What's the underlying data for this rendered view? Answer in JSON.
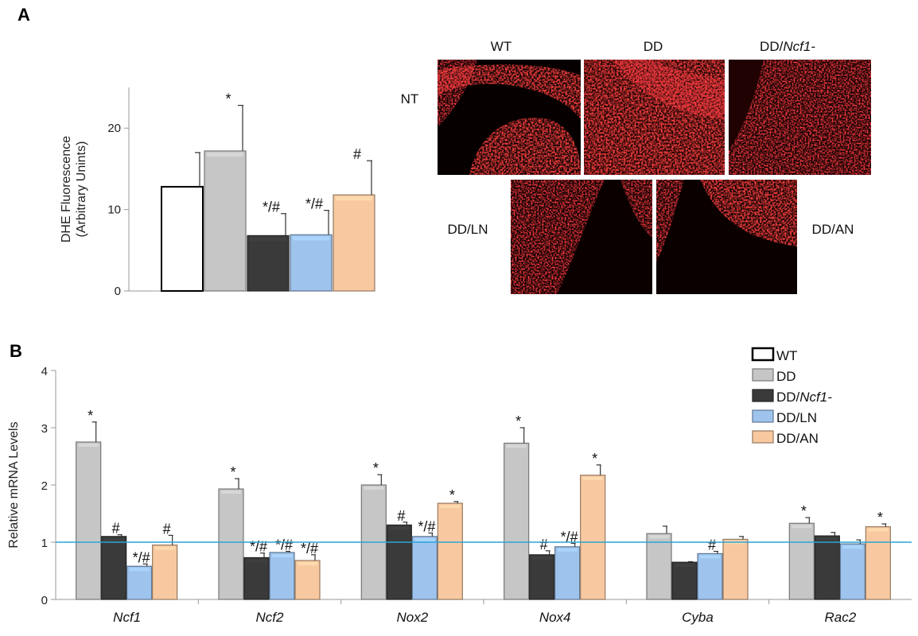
{
  "panel_a_letter": "A",
  "panel_b_letter": "B",
  "chart_data": [
    {
      "type": "bar",
      "panel": "A",
      "ylabel_line1": "DHE Fluorescence",
      "ylabel_line2": "(Arbitrary Unints)",
      "ylim": [
        0,
        25
      ],
      "yticks": [
        0,
        10,
        20
      ],
      "categories": [
        "WT",
        "DD",
        "DD/Ncf1-",
        "DD/LN",
        "DD/AN"
      ],
      "values": [
        12.8,
        17.2,
        6.8,
        6.9,
        11.8
      ],
      "errors": [
        4.2,
        5.6,
        2.7,
        3.0,
        4.2
      ],
      "significance": [
        "",
        "*",
        "*/#",
        "*/#",
        "#"
      ],
      "colors": [
        "#ffffff",
        "#c6c6c6",
        "#3a3a3a",
        "#9ec4ee",
        "#f8c9a0"
      ]
    },
    {
      "type": "bar",
      "panel": "B",
      "ylabel": "Relative mRNA Levels",
      "ylim": [
        0,
        4
      ],
      "yticks": [
        0,
        1,
        2,
        3,
        4
      ],
      "reference_line": 1,
      "categories": [
        "Ncf1",
        "Ncf2",
        "Nox2",
        "Nox4",
        "Cyba",
        "Rac2"
      ],
      "series": [
        {
          "name": "WT",
          "color": "#ffffff",
          "values": [
            null,
            null,
            null,
            null,
            null,
            null
          ],
          "errors": [
            null,
            null,
            null,
            null,
            null,
            null
          ],
          "significance": [
            "",
            "",
            "",
            "",
            "",
            ""
          ]
        },
        {
          "name": "DD",
          "color": "#c6c6c6",
          "values": [
            2.75,
            1.93,
            2.0,
            2.73,
            1.15,
            1.33
          ],
          "errors": [
            0.35,
            0.18,
            0.18,
            0.27,
            0.13,
            0.1
          ],
          "significance": [
            "*",
            "*",
            "*",
            "*",
            "",
            "*"
          ]
        },
        {
          "name": "DD/",
          "name_italic": "Ncf1-",
          "color": "#3a3a3a",
          "values": [
            1.1,
            0.73,
            1.3,
            0.78,
            0.65,
            1.11
          ],
          "errors": [
            0.03,
            0.08,
            0.05,
            0.07,
            0.01,
            0.06
          ],
          "significance": [
            "#",
            "*/#",
            "#",
            "#",
            "",
            ""
          ]
        },
        {
          "name": "DD/LN",
          "color": "#9ec4ee",
          "values": [
            0.58,
            0.82,
            1.1,
            0.92,
            0.8,
            0.97
          ],
          "errors": [
            0.04,
            0.02,
            0.06,
            0.06,
            0.04,
            0.07
          ],
          "significance": [
            "*/#",
            "*/#",
            "*/#",
            "*/#",
            "#",
            ""
          ]
        },
        {
          "name": "DD/AN",
          "color": "#f8c9a0",
          "values": [
            0.95,
            0.68,
            1.68,
            2.17,
            1.05,
            1.27
          ],
          "errors": [
            0.17,
            0.1,
            0.03,
            0.18,
            0.05,
            0.05
          ],
          "significance": [
            "#",
            "*/#",
            "*",
            "*",
            "",
            "*"
          ]
        }
      ]
    }
  ],
  "micrographs": {
    "column_labels": [
      "WT",
      "DD",
      "DD/",
      "DD/AN"
    ],
    "column_label_italic": "Ncf1-",
    "row_labels": [
      "NT",
      "DD/LN"
    ]
  }
}
